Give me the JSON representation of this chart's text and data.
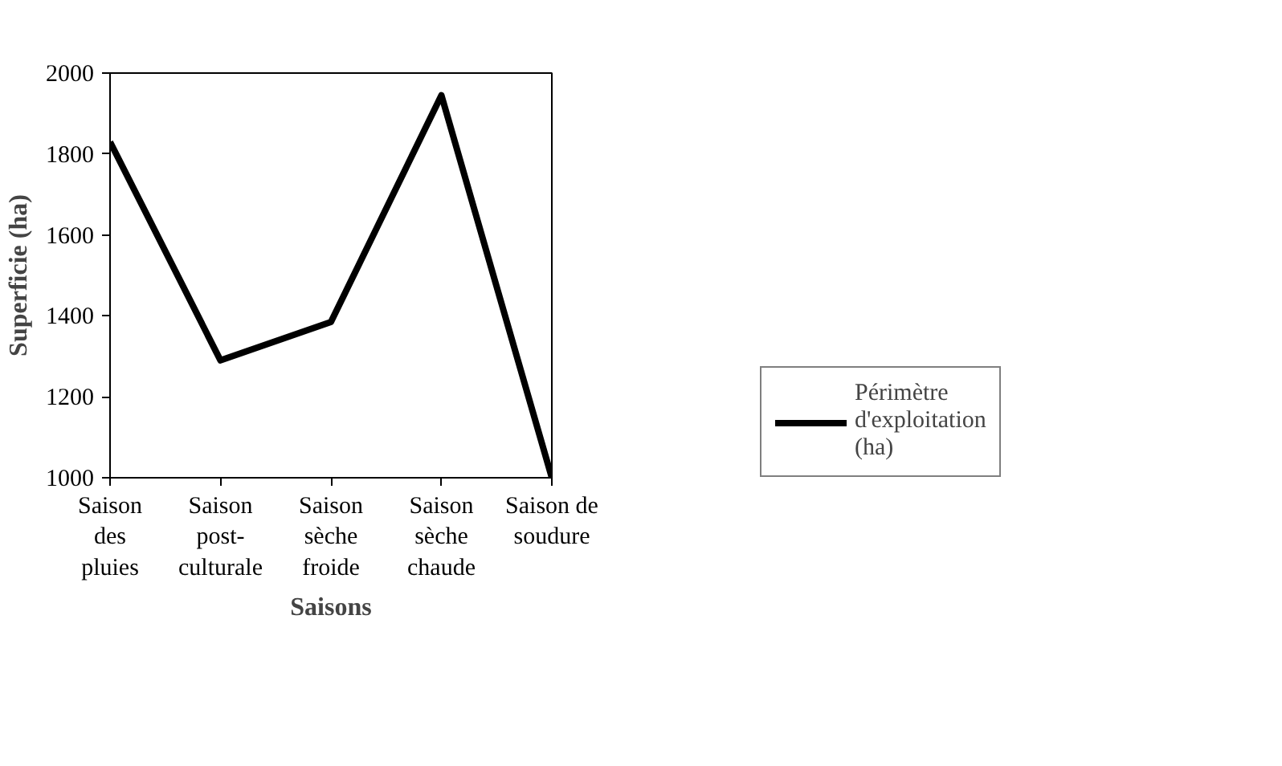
{
  "chart_data": {
    "type": "line",
    "xlabel": "Saisons",
    "ylabel": "Superficie (ha)",
    "categories": [
      "Saison des pluies",
      "Saison post-culturale",
      "Saison sèche froide",
      "Saison sèche chaude",
      "Saison de soudure"
    ],
    "series": [
      {
        "name": "Périmètre d'exploitation (ha)",
        "color": "#000000",
        "values": [
          1830,
          1290,
          1385,
          1945,
          1000
        ]
      }
    ],
    "ylim": [
      1000,
      2000
    ],
    "yticks": [
      1000,
      1200,
      1400,
      1600,
      1800,
      2000
    ],
    "grid": false,
    "legend": "right",
    "marker": "none",
    "line_style": "solid"
  }
}
